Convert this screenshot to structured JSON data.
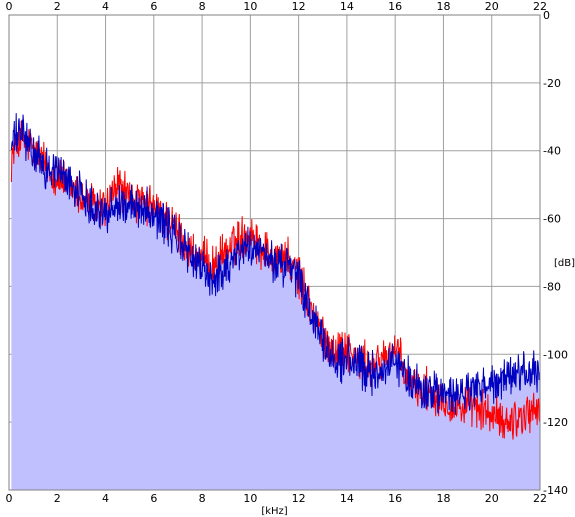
{
  "chart_data": {
    "type": "area",
    "title": "",
    "xlabel": "[kHz]",
    "ylabel": "[dB]",
    "xlim": [
      0,
      22
    ],
    "ylim": [
      -140,
      0
    ],
    "x_ticks": [
      0,
      2,
      4,
      6,
      8,
      10,
      12,
      14,
      16,
      18,
      20,
      22
    ],
    "x_tick_labels": [
      "0",
      "2",
      "4",
      "6",
      "8",
      "10",
      "12",
      "14",
      "16",
      "18",
      "20",
      "22"
    ],
    "y_ticks": [
      0,
      -20,
      -40,
      -60,
      -80,
      -100,
      -120,
      -140
    ],
    "y_tick_labels": [
      "0",
      "-20",
      "-40",
      "-60",
      "-80",
      "-100",
      "-120",
      "-140"
    ],
    "grid": true,
    "colors": {
      "background": "#ffffff",
      "plot_background": "#ffffff",
      "grid": "#a0a0a0",
      "fill": "#c0c0ff",
      "frame": "#808080"
    },
    "series": [
      {
        "color": "#ff0000",
        "x": [
          0.1,
          0.5,
          1,
          1.5,
          2,
          2.5,
          3,
          3.5,
          4,
          4.5,
          5,
          5.5,
          6,
          6.5,
          7,
          7.5,
          8,
          8.5,
          9,
          9.5,
          10,
          10.5,
          11,
          11.5,
          12,
          12.5,
          13,
          13.5,
          14,
          14.5,
          15,
          15.5,
          16,
          16.5,
          17,
          17.5,
          18,
          18.5,
          19,
          19.5,
          20,
          20.5,
          21,
          21.5,
          22
        ],
        "values": [
          -42,
          -36,
          -40,
          -44,
          -48,
          -50,
          -54,
          -56,
          -57,
          -50,
          -54,
          -56,
          -57,
          -60,
          -64,
          -70,
          -72,
          -74,
          -70,
          -66,
          -64,
          -69,
          -71,
          -72,
          -77,
          -86,
          -95,
          -99,
          -98,
          -102,
          -104,
          -101,
          -98,
          -108,
          -110,
          -111,
          -113,
          -116,
          -115,
          -116,
          -118,
          -120,
          -119,
          -117,
          -116
        ]
      },
      {
        "color": "#0000c0",
        "x": [
          0.1,
          0.5,
          1,
          1.5,
          2,
          2.5,
          3,
          3.5,
          4,
          4.5,
          5,
          5.5,
          6,
          6.5,
          7,
          7.5,
          8,
          8.5,
          9,
          9.5,
          10,
          10.5,
          11,
          11.5,
          12,
          12.5,
          13,
          13.5,
          14,
          14.5,
          15,
          15.5,
          16,
          16.5,
          17,
          17.5,
          18,
          18.5,
          19,
          19.5,
          20,
          20.5,
          21,
          21.5,
          22
        ],
        "values": [
          -38,
          -34,
          -41,
          -45,
          -46,
          -49,
          -53,
          -56,
          -59,
          -55,
          -57,
          -56,
          -58,
          -62,
          -66,
          -71,
          -75,
          -78,
          -74,
          -70,
          -68,
          -71,
          -73,
          -74,
          -78,
          -88,
          -97,
          -102,
          -101,
          -104,
          -106,
          -104,
          -102,
          -107,
          -110,
          -111,
          -112,
          -113,
          -111,
          -110,
          -109,
          -108,
          -106,
          -105,
          -107
        ]
      }
    ]
  }
}
